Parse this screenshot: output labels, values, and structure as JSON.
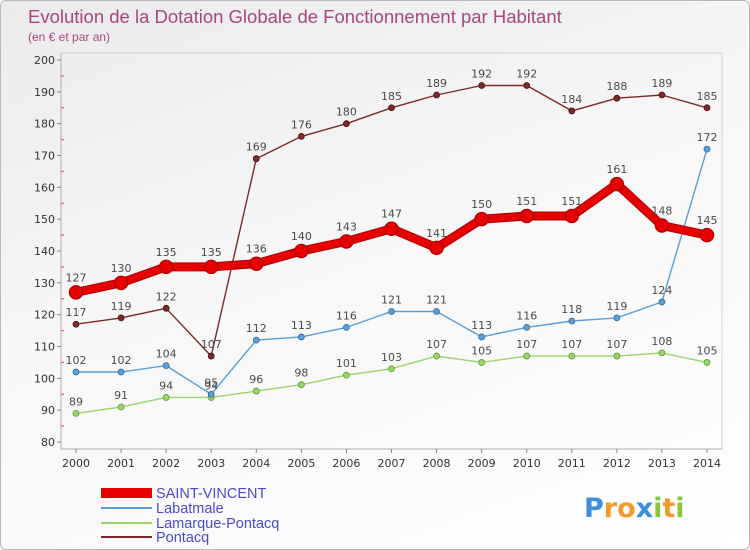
{
  "chart_data": {
    "type": "line",
    "title": "Evolution de la Dotation Globale de Fonctionnement par Habitant",
    "subtitle": "(en € et par an)",
    "xlabel": "",
    "ylabel": "",
    "x": [
      "2000",
      "2001",
      "2002",
      "2003",
      "2004",
      "2005",
      "2006",
      "2007",
      "2008",
      "2009",
      "2010",
      "2011",
      "2012",
      "2013",
      "2014"
    ],
    "ylim": [
      80,
      200
    ],
    "yticks": [
      80,
      90,
      100,
      110,
      120,
      130,
      140,
      150,
      160,
      170,
      180,
      190,
      200
    ],
    "grid": false,
    "legend": "bottom-left",
    "series": [
      {
        "name": "SAINT-VINCENT",
        "color": "#e60000",
        "edge": "#b80000",
        "emphasis": true,
        "values": [
          127,
          130,
          135,
          135,
          136,
          140,
          143,
          147,
          141,
          150,
          151,
          151,
          161,
          148,
          145
        ]
      },
      {
        "name": "Labatmale",
        "color": "#5b9fd6",
        "edge": "#2f6e9f",
        "emphasis": false,
        "values": [
          102,
          102,
          104,
          95,
          112,
          113,
          116,
          121,
          121,
          113,
          116,
          118,
          119,
          124,
          172
        ]
      },
      {
        "name": "Lamarque-Pontacq",
        "color": "#9ad46a",
        "edge": "#5f9a32",
        "emphasis": false,
        "values": [
          89,
          91,
          94,
          94,
          96,
          98,
          101,
          103,
          107,
          105,
          107,
          107,
          107,
          108,
          105
        ]
      },
      {
        "name": "Pontacq",
        "color": "#7a2a2a",
        "edge": "#4d1212",
        "emphasis": false,
        "values": [
          117,
          119,
          122,
          107,
          169,
          176,
          180,
          185,
          189,
          192,
          192,
          184,
          188,
          189,
          185
        ]
      }
    ]
  },
  "logo": {
    "text": "Proxiti",
    "colors": [
      "#3b8fdb",
      "#f39a2b",
      "#f39a2b",
      "#3b8fdb",
      "#8cc63f",
      "#f39a2b",
      "#8cc63f"
    ]
  }
}
